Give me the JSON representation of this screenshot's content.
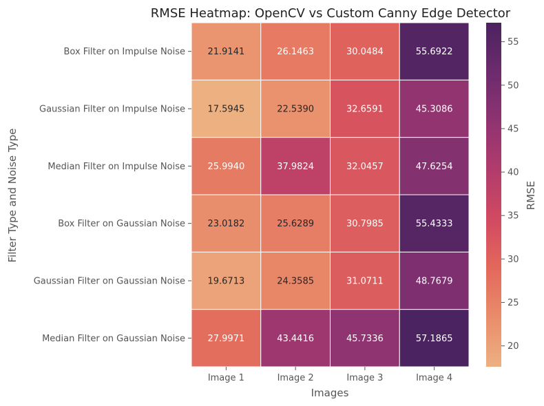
{
  "chart_data": {
    "type": "heatmap",
    "title": "RMSE Heatmap: OpenCV vs Custom Canny Edge Detector",
    "xlabel": "Images",
    "ylabel": "Filter Type and Noise Type",
    "colorbar_label": "RMSE",
    "x_categories": [
      "Image 1",
      "Image 2",
      "Image 3",
      "Image 4"
    ],
    "y_categories": [
      "Box Filter on Impulse Noise",
      "Gaussian Filter on Impulse Noise",
      "Median Filter on Impulse Noise",
      "Box Filter on Gaussian Noise",
      "Gaussian Filter on Gaussian Noise",
      "Median Filter on Gaussian Noise"
    ],
    "values": [
      [
        21.9141,
        26.1463,
        30.0484,
        55.6922
      ],
      [
        17.5945,
        22.539,
        32.6591,
        45.3086
      ],
      [
        25.994,
        37.9824,
        32.0457,
        47.6254
      ],
      [
        23.0182,
        25.6289,
        30.7985,
        55.4333
      ],
      [
        19.6713,
        24.3585,
        31.0711,
        48.7679
      ],
      [
        27.9971,
        43.4416,
        45.7336,
        57.1865
      ]
    ],
    "value_labels": [
      [
        "21.9141",
        "26.1463",
        "30.0484",
        "55.6922"
      ],
      [
        "17.5945",
        "22.5390",
        "32.6591",
        "45.3086"
      ],
      [
        "25.9940",
        "37.9824",
        "32.0457",
        "47.6254"
      ],
      [
        "23.0182",
        "25.6289",
        "30.7985",
        "55.4333"
      ],
      [
        "19.6713",
        "24.3585",
        "31.0711",
        "48.7679"
      ],
      [
        "27.9971",
        "43.4416",
        "45.7336",
        "57.1865"
      ]
    ],
    "color_range": [
      17.5945,
      57.1865
    ],
    "colorbar_ticks": [
      "20",
      "25",
      "30",
      "35",
      "40",
      "45",
      "50",
      "55"
    ],
    "colormap": "flare",
    "colormap_stops": [
      "#edb081",
      "#e98d6b",
      "#e3685c",
      "#d14a61",
      "#b13c6c",
      "#8f3371",
      "#6c2b6d",
      "#4b2360"
    ],
    "grid_line_color": "#ffffff",
    "dark_text_color": "#262626",
    "light_text_color": "#ffffff",
    "grid": false
  }
}
